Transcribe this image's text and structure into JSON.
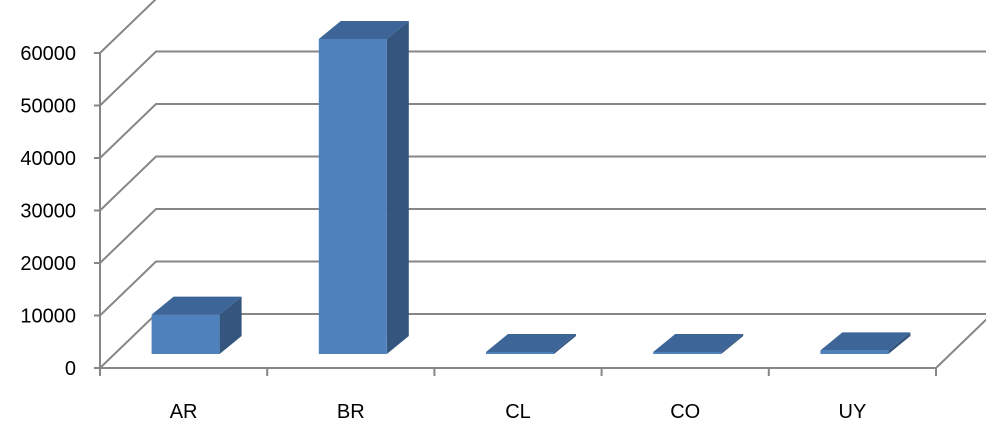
{
  "chart_data": {
    "type": "bar",
    "title": "",
    "xlabel": "",
    "ylabel": "",
    "categories": [
      "AR",
      "BR",
      "CL",
      "CO",
      "UY"
    ],
    "values": [
      7500,
      60000,
      150,
      100,
      700
    ],
    "ylim": [
      0,
      60000
    ],
    "yticks": [
      0,
      10000,
      20000,
      30000,
      40000,
      50000,
      60000
    ],
    "ytick_labels": [
      "0",
      "10000",
      "20000",
      "30000",
      "40000",
      "50000",
      "60000"
    ],
    "grid": true,
    "legend": "none",
    "style": "3d-column",
    "colors": {
      "bar_front": "#4f81bd",
      "bar_side": "#34557e",
      "bar_top": "#3d6597",
      "grid": "#868686"
    }
  }
}
